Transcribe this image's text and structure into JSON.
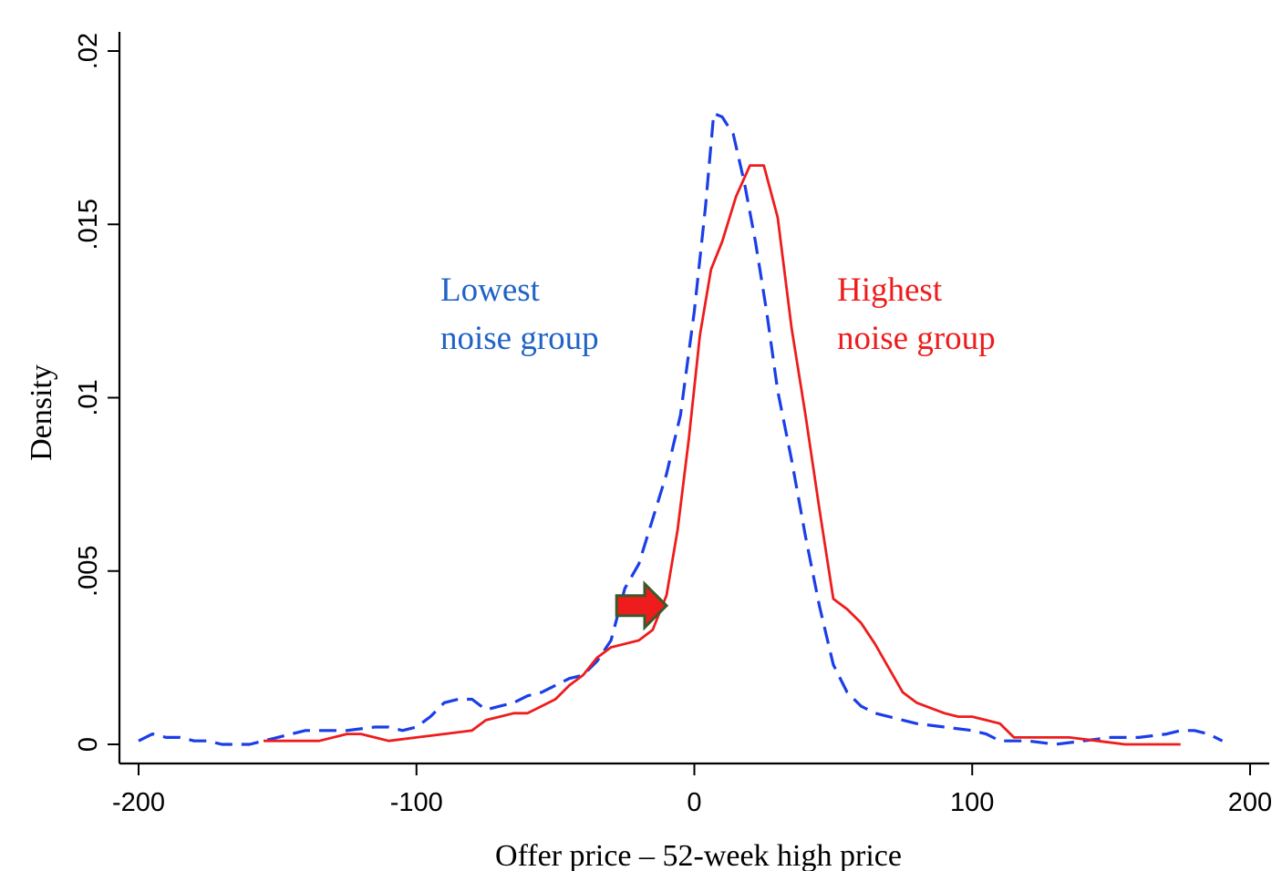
{
  "chart_data": {
    "type": "line",
    "xlabel": "Offer price – 52-week high price",
    "ylabel": "Density",
    "xlim": [
      -200,
      200
    ],
    "ylim": [
      0,
      0.02
    ],
    "x_ticks": [
      -200,
      -100,
      0,
      100,
      200
    ],
    "x_tick_labels": [
      "-200",
      "-100",
      "0",
      "100",
      "200"
    ],
    "y_ticks": [
      0,
      0.005,
      0.01,
      0.015,
      0.02
    ],
    "y_tick_labels": [
      "0",
      ".005",
      ".01",
      ".015",
      ".02"
    ],
    "grid": false,
    "series": [
      {
        "name": "Lowest noise group",
        "color": "#1a3ee8",
        "dash": "dashed",
        "points": [
          [
            -200,
            0.0001
          ],
          [
            -195,
            0.0003
          ],
          [
            -190,
            0.0002
          ],
          [
            -185,
            0.0002
          ],
          [
            -180,
            0.0001
          ],
          [
            -175,
            0.0001
          ],
          [
            -170,
            0.0
          ],
          [
            -165,
            0.0
          ],
          [
            -160,
            0.0
          ],
          [
            -150,
            0.0002
          ],
          [
            -145,
            0.0003
          ],
          [
            -140,
            0.0004
          ],
          [
            -135,
            0.0004
          ],
          [
            -125,
            0.0004
          ],
          [
            -115,
            0.0005
          ],
          [
            -110,
            0.0005
          ],
          [
            -105,
            0.0004
          ],
          [
            -100,
            0.0005
          ],
          [
            -95,
            0.0008
          ],
          [
            -90,
            0.0012
          ],
          [
            -85,
            0.0013
          ],
          [
            -80,
            0.0013
          ],
          [
            -75,
            0.001
          ],
          [
            -70,
            0.0011
          ],
          [
            -65,
            0.0012
          ],
          [
            -60,
            0.0014
          ],
          [
            -55,
            0.0015
          ],
          [
            -50,
            0.0017
          ],
          [
            -45,
            0.0019
          ],
          [
            -40,
            0.002
          ],
          [
            -35,
            0.0024
          ],
          [
            -30,
            0.003
          ],
          [
            -25,
            0.0045
          ],
          [
            -20,
            0.0052
          ],
          [
            -15,
            0.0065
          ],
          [
            -10,
            0.0078
          ],
          [
            -5,
            0.0095
          ],
          [
            0,
            0.0125
          ],
          [
            4,
            0.0155
          ],
          [
            7,
            0.0182
          ],
          [
            10,
            0.0181
          ],
          [
            14,
            0.0176
          ],
          [
            18,
            0.0162
          ],
          [
            22,
            0.0145
          ],
          [
            26,
            0.0125
          ],
          [
            30,
            0.0102
          ],
          [
            35,
            0.0082
          ],
          [
            40,
            0.006
          ],
          [
            45,
            0.004
          ],
          [
            50,
            0.0023
          ],
          [
            55,
            0.0015
          ],
          [
            60,
            0.0011
          ],
          [
            65,
            0.0009
          ],
          [
            70,
            0.0008
          ],
          [
            75,
            0.0007
          ],
          [
            80,
            0.0006
          ],
          [
            90,
            0.0005
          ],
          [
            100,
            0.0004
          ],
          [
            105,
            0.0003
          ],
          [
            110,
            0.0001
          ],
          [
            120,
            0.0001
          ],
          [
            130,
            0.0
          ],
          [
            140,
            0.0001
          ],
          [
            150,
            0.0002
          ],
          [
            160,
            0.0002
          ],
          [
            170,
            0.0003
          ],
          [
            175,
            0.0004
          ],
          [
            180,
            0.0004
          ],
          [
            185,
            0.0003
          ],
          [
            190,
            0.0001
          ]
        ]
      },
      {
        "name": "Highest noise group",
        "color": "#ee1c1c",
        "dash": "solid",
        "points": [
          [
            -155,
            0.0001
          ],
          [
            -148,
            0.0001
          ],
          [
            -140,
            0.0001
          ],
          [
            -135,
            0.0001
          ],
          [
            -125,
            0.0003
          ],
          [
            -120,
            0.0003
          ],
          [
            -115,
            0.0002
          ],
          [
            -110,
            0.0001
          ],
          [
            -100,
            0.0002
          ],
          [
            -90,
            0.0003
          ],
          [
            -80,
            0.0004
          ],
          [
            -75,
            0.0007
          ],
          [
            -70,
            0.0008
          ],
          [
            -65,
            0.0009
          ],
          [
            -60,
            0.0009
          ],
          [
            -55,
            0.0011
          ],
          [
            -50,
            0.0013
          ],
          [
            -45,
            0.0017
          ],
          [
            -40,
            0.002
          ],
          [
            -35,
            0.0025
          ],
          [
            -30,
            0.0028
          ],
          [
            -25,
            0.0029
          ],
          [
            -20,
            0.003
          ],
          [
            -15,
            0.0033
          ],
          [
            -10,
            0.0043
          ],
          [
            -6,
            0.0062
          ],
          [
            -2,
            0.0088
          ],
          [
            2,
            0.0118
          ],
          [
            6,
            0.0137
          ],
          [
            10,
            0.0145
          ],
          [
            15,
            0.0158
          ],
          [
            20,
            0.0167
          ],
          [
            25,
            0.0167
          ],
          [
            30,
            0.0152
          ],
          [
            35,
            0.012
          ],
          [
            40,
            0.0095
          ],
          [
            45,
            0.0068
          ],
          [
            50,
            0.0042
          ],
          [
            55,
            0.0039
          ],
          [
            60,
            0.0035
          ],
          [
            65,
            0.0029
          ],
          [
            70,
            0.0022
          ],
          [
            75,
            0.0015
          ],
          [
            80,
            0.0012
          ],
          [
            90,
            0.0009
          ],
          [
            95,
            0.0008
          ],
          [
            100,
            0.0008
          ],
          [
            105,
            0.0007
          ],
          [
            110,
            0.0006
          ],
          [
            115,
            0.0002
          ],
          [
            125,
            0.0002
          ],
          [
            135,
            0.0002
          ],
          [
            145,
            0.0001
          ],
          [
            155,
            0.0
          ],
          [
            165,
            0.0
          ],
          [
            175,
            0.0
          ]
        ]
      }
    ],
    "annotation": {
      "type": "arrow",
      "direction": "right",
      "fill": "#ee1c1c",
      "stroke": "#3a5a2a",
      "from": [
        -28,
        0.004
      ],
      "to": [
        -10,
        0.004
      ]
    }
  }
}
